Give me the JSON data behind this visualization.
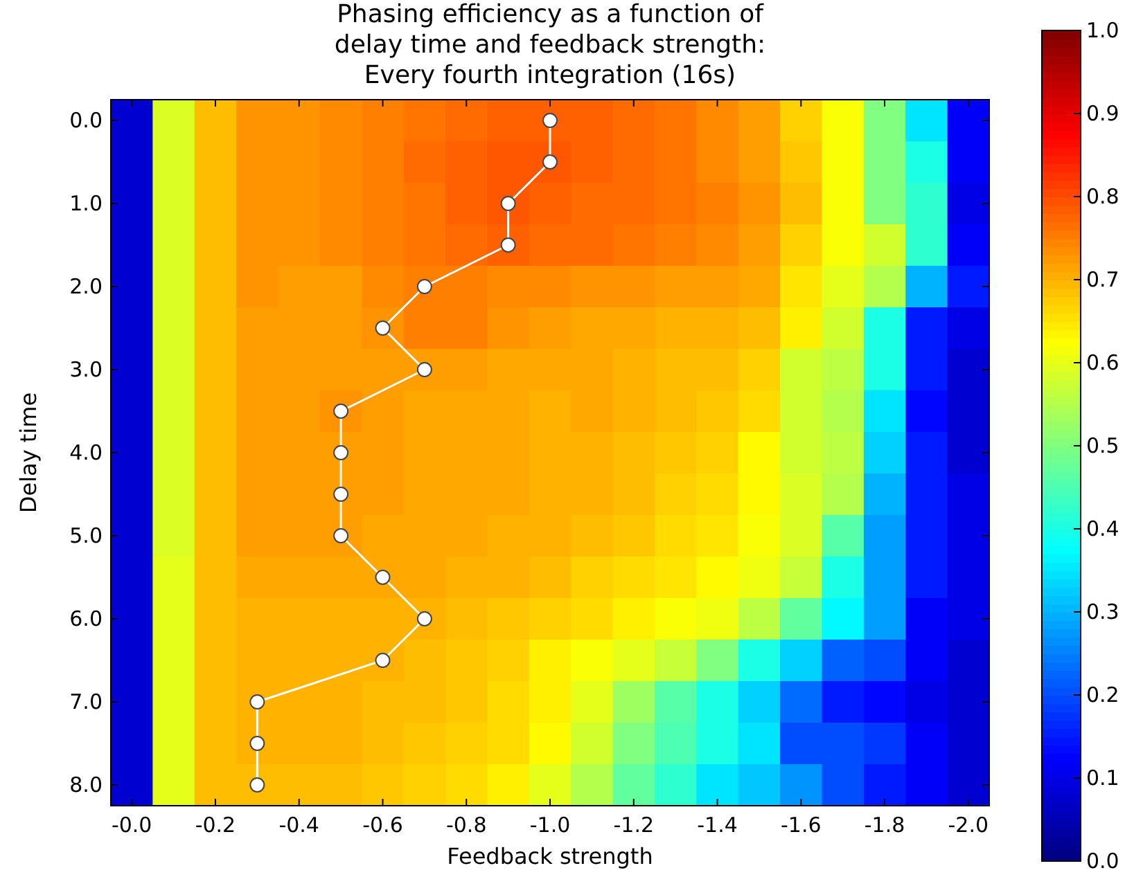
{
  "chart_data": {
    "type": "heatmap",
    "title": "Phasing efficiency as a function of\ndelay time and feedback strength:\nEvery fourth integration (16s)",
    "xlabel": "Feedback strength",
    "ylabel": "Delay time",
    "xlim": [
      0.05,
      -2.05
    ],
    "xticks": [
      {
        "value": 0,
        "label": "-0.0"
      },
      {
        "value": -0.2,
        "label": "-0.2"
      },
      {
        "value": -0.4,
        "label": "-0.4"
      },
      {
        "value": -0.6,
        "label": "-0.6"
      },
      {
        "value": -0.8,
        "label": "-0.8"
      },
      {
        "value": -1.0,
        "label": "-1.0"
      },
      {
        "value": -1.2,
        "label": "-1.2"
      },
      {
        "value": -1.4,
        "label": "-1.4"
      },
      {
        "value": -1.6,
        "label": "-1.6"
      },
      {
        "value": -1.8,
        "label": "-1.8"
      },
      {
        "value": -2.0,
        "label": "-2.0"
      }
    ],
    "ylim": [
      8.25,
      -0.25
    ],
    "yticks": [
      {
        "value": 0,
        "label": "0.0"
      },
      {
        "value": 1,
        "label": "1.0"
      },
      {
        "value": 2,
        "label": "2.0"
      },
      {
        "value": 3,
        "label": "3.0"
      },
      {
        "value": 4,
        "label": "4.0"
      },
      {
        "value": 5,
        "label": "5.0"
      },
      {
        "value": 6,
        "label": "6.0"
      },
      {
        "value": 7,
        "label": "7.0"
      },
      {
        "value": 8,
        "label": "8.0"
      }
    ],
    "cells": [
      [
        0.08,
        0.59,
        0.69,
        0.73,
        0.73,
        0.74,
        0.75,
        0.76,
        0.77,
        0.78,
        0.78,
        0.78,
        0.77,
        0.76,
        0.74,
        0.72,
        0.67,
        0.62,
        0.5,
        0.35,
        0.12
      ],
      [
        0.08,
        0.59,
        0.69,
        0.73,
        0.73,
        0.74,
        0.75,
        0.77,
        0.78,
        0.79,
        0.79,
        0.78,
        0.77,
        0.76,
        0.74,
        0.72,
        0.68,
        0.62,
        0.5,
        0.4,
        0.12
      ],
      [
        0.08,
        0.59,
        0.69,
        0.73,
        0.73,
        0.74,
        0.75,
        0.76,
        0.78,
        0.79,
        0.78,
        0.77,
        0.77,
        0.76,
        0.75,
        0.73,
        0.69,
        0.62,
        0.5,
        0.42,
        0.1
      ],
      [
        0.08,
        0.59,
        0.69,
        0.73,
        0.73,
        0.74,
        0.75,
        0.76,
        0.77,
        0.78,
        0.77,
        0.77,
        0.76,
        0.75,
        0.74,
        0.72,
        0.67,
        0.62,
        0.58,
        0.42,
        0.12
      ],
      [
        0.08,
        0.59,
        0.69,
        0.73,
        0.72,
        0.72,
        0.74,
        0.75,
        0.75,
        0.74,
        0.74,
        0.73,
        0.73,
        0.72,
        0.72,
        0.71,
        0.65,
        0.6,
        0.55,
        0.3,
        0.15
      ],
      [
        0.08,
        0.59,
        0.69,
        0.72,
        0.72,
        0.72,
        0.73,
        0.75,
        0.75,
        0.73,
        0.72,
        0.71,
        0.71,
        0.7,
        0.7,
        0.69,
        0.64,
        0.58,
        0.4,
        0.15,
        0.1
      ],
      [
        0.08,
        0.59,
        0.69,
        0.72,
        0.72,
        0.72,
        0.72,
        0.72,
        0.72,
        0.71,
        0.71,
        0.71,
        0.7,
        0.69,
        0.69,
        0.67,
        0.58,
        0.56,
        0.4,
        0.15,
        0.08
      ],
      [
        0.08,
        0.59,
        0.69,
        0.72,
        0.72,
        0.73,
        0.72,
        0.71,
        0.71,
        0.71,
        0.7,
        0.71,
        0.7,
        0.69,
        0.68,
        0.66,
        0.58,
        0.55,
        0.35,
        0.13,
        0.08
      ],
      [
        0.08,
        0.59,
        0.69,
        0.72,
        0.72,
        0.72,
        0.72,
        0.71,
        0.71,
        0.71,
        0.7,
        0.7,
        0.69,
        0.68,
        0.67,
        0.63,
        0.58,
        0.56,
        0.33,
        0.15,
        0.08
      ],
      [
        0.08,
        0.59,
        0.69,
        0.72,
        0.72,
        0.72,
        0.72,
        0.71,
        0.71,
        0.71,
        0.7,
        0.7,
        0.69,
        0.67,
        0.66,
        0.63,
        0.59,
        0.55,
        0.3,
        0.15,
        0.1
      ],
      [
        0.08,
        0.59,
        0.69,
        0.72,
        0.72,
        0.72,
        0.71,
        0.71,
        0.71,
        0.7,
        0.7,
        0.69,
        0.68,
        0.66,
        0.65,
        0.62,
        0.59,
        0.46,
        0.28,
        0.15,
        0.1
      ],
      [
        0.08,
        0.6,
        0.69,
        0.71,
        0.71,
        0.71,
        0.71,
        0.71,
        0.7,
        0.7,
        0.69,
        0.67,
        0.66,
        0.65,
        0.63,
        0.61,
        0.57,
        0.4,
        0.28,
        0.15,
        0.1
      ],
      [
        0.08,
        0.6,
        0.69,
        0.7,
        0.7,
        0.7,
        0.7,
        0.7,
        0.69,
        0.68,
        0.67,
        0.66,
        0.64,
        0.62,
        0.61,
        0.56,
        0.47,
        0.37,
        0.28,
        0.12,
        0.1
      ],
      [
        0.08,
        0.6,
        0.69,
        0.7,
        0.7,
        0.7,
        0.7,
        0.69,
        0.68,
        0.67,
        0.64,
        0.62,
        0.6,
        0.57,
        0.5,
        0.4,
        0.33,
        0.22,
        0.2,
        0.12,
        0.08
      ],
      [
        0.08,
        0.6,
        0.69,
        0.7,
        0.7,
        0.7,
        0.69,
        0.69,
        0.68,
        0.66,
        0.64,
        0.6,
        0.53,
        0.46,
        0.4,
        0.33,
        0.23,
        0.15,
        0.13,
        0.1,
        0.08
      ],
      [
        0.08,
        0.6,
        0.69,
        0.7,
        0.7,
        0.7,
        0.69,
        0.68,
        0.67,
        0.66,
        0.63,
        0.58,
        0.5,
        0.45,
        0.4,
        0.35,
        0.2,
        0.2,
        0.18,
        0.12,
        0.08
      ],
      [
        0.08,
        0.6,
        0.69,
        0.69,
        0.69,
        0.69,
        0.68,
        0.67,
        0.66,
        0.64,
        0.6,
        0.55,
        0.47,
        0.42,
        0.35,
        0.32,
        0.27,
        0.2,
        0.15,
        0.12,
        0.08
      ]
    ],
    "clim": [
      0,
      1
    ],
    "cticks": [
      {
        "value": 0,
        "label": "0.0"
      },
      {
        "value": 0.1,
        "label": "0.1"
      },
      {
        "value": 0.2,
        "label": "0.2"
      },
      {
        "value": 0.3,
        "label": "0.3"
      },
      {
        "value": 0.4,
        "label": "0.4"
      },
      {
        "value": 0.5,
        "label": "0.5"
      },
      {
        "value": 0.6,
        "label": "0.6"
      },
      {
        "value": 0.7,
        "label": "0.7"
      },
      {
        "value": 0.8,
        "label": "0.8"
      },
      {
        "value": 0.9,
        "label": "0.9"
      },
      {
        "value": 1.0,
        "label": "1.0"
      }
    ],
    "series": [
      {
        "type": "line",
        "color": "#ffffff",
        "marker": "circle",
        "x": [
          -1.0,
          -1.0,
          -0.9,
          -0.9,
          -0.7,
          -0.6,
          -0.7,
          -0.5,
          -0.5,
          -0.5,
          -0.5,
          -0.6,
          -0.7,
          -0.6,
          -0.3,
          -0.3,
          -0.3
        ],
        "values": [
          0,
          0.5,
          1,
          1.5,
          2,
          2.5,
          3,
          3.5,
          4,
          4.5,
          5,
          5.5,
          6,
          6.5,
          7,
          7.5,
          8
        ]
      }
    ]
  }
}
